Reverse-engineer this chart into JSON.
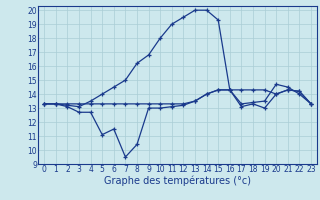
{
  "hours": [
    0,
    1,
    2,
    3,
    4,
    5,
    6,
    7,
    8,
    9,
    10,
    11,
    12,
    13,
    14,
    15,
    16,
    17,
    18,
    19,
    20,
    21,
    22,
    23
  ],
  "temp_curve": [
    13.3,
    13.3,
    13.2,
    13.1,
    13.5,
    14.0,
    14.5,
    15.0,
    16.2,
    16.8,
    18.0,
    19.0,
    19.5,
    20.0,
    20.0,
    19.3,
    14.3,
    13.3,
    13.4,
    13.5,
    14.7,
    14.5,
    14.0,
    13.3
  ],
  "flat_line": [
    13.3,
    13.3,
    13.3,
    13.3,
    13.3,
    13.3,
    13.3,
    13.3,
    13.3,
    13.3,
    13.3,
    13.3,
    13.3,
    13.5,
    14.0,
    14.3,
    14.3,
    14.3,
    14.3,
    14.3,
    14.0,
    14.3,
    14.2,
    13.3
  ],
  "dip_line": [
    13.3,
    13.3,
    13.1,
    12.7,
    12.7,
    11.1,
    11.5,
    9.5,
    10.4,
    13.0,
    13.0,
    13.1,
    13.2,
    13.5,
    14.0,
    14.3,
    14.3,
    13.1,
    13.3,
    13.0,
    14.0,
    14.3,
    14.2,
    13.3
  ],
  "xlabel": "Graphe des températures (°c)",
  "ylim": [
    9,
    20.3
  ],
  "xlim": [
    -0.5,
    23.5
  ],
  "yticks": [
    9,
    10,
    11,
    12,
    13,
    14,
    15,
    16,
    17,
    18,
    19,
    20
  ],
  "xticks": [
    0,
    1,
    2,
    3,
    4,
    5,
    6,
    7,
    8,
    9,
    10,
    11,
    12,
    13,
    14,
    15,
    16,
    17,
    18,
    19,
    20,
    21,
    22,
    23
  ],
  "bg_color": "#cde8ed",
  "line_color": "#1a3a8c",
  "grid_color": "#aacdd5",
  "xlabel_fontsize": 7,
  "tick_fontsize": 5.5
}
